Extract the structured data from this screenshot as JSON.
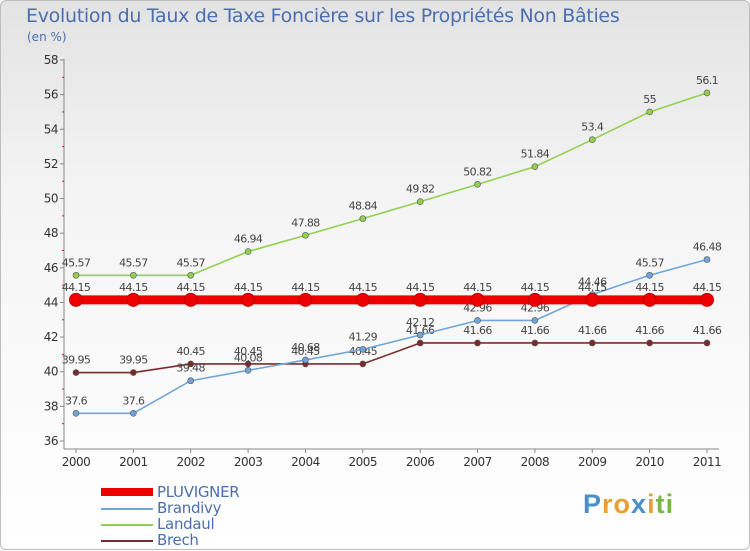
{
  "chart_data": {
    "type": "line",
    "title": "Evolution du Taux de Taxe Foncière sur les Propriétés Non Bâties",
    "subtitle": "(en %)",
    "xlabel": "",
    "ylabel": "",
    "ylim": [
      36,
      58
    ],
    "y_ticks": [
      "36",
      "38",
      "40",
      "42",
      "44",
      "46",
      "48",
      "50",
      "52",
      "54",
      "56",
      "58"
    ],
    "categories": [
      "2000",
      "2001",
      "2002",
      "2003",
      "2004",
      "2005",
      "2006",
      "2007",
      "2008",
      "2009",
      "2010",
      "2011"
    ],
    "grid": false,
    "legend_position": "bottom-left",
    "series": [
      {
        "name": "PLUVIGNER",
        "color": "#ee0000",
        "values": [
          44.15,
          44.15,
          44.15,
          44.15,
          44.15,
          44.15,
          44.15,
          44.15,
          44.15,
          44.15,
          44.15,
          44.15
        ],
        "labels": [
          "44.15",
          "44.15",
          "44.15",
          "44.15",
          "44.15",
          "44.15",
          "44.15",
          "44.15",
          "44.15",
          "44.15",
          "44.15",
          "44.15"
        ]
      },
      {
        "name": "Brandivy",
        "color": "#6fa5d8",
        "values": [
          37.6,
          37.6,
          39.48,
          40.08,
          40.68,
          41.29,
          42.12,
          42.96,
          42.96,
          44.46,
          45.57,
          46.48
        ],
        "labels": [
          "37.6",
          "37.6",
          "39.48",
          "40.08",
          "40.68",
          "41.29",
          "42.12",
          "42.96",
          "42.96",
          "44.46",
          "45.57",
          "46.48"
        ]
      },
      {
        "name": "Landaul",
        "color": "#92d050",
        "values": [
          45.57,
          45.57,
          45.57,
          46.94,
          47.88,
          48.84,
          49.82,
          50.82,
          51.84,
          53.4,
          55,
          56.1
        ],
        "labels": [
          "45.57",
          "45.57",
          "45.57",
          "46.94",
          "47.88",
          "48.84",
          "49.82",
          "50.82",
          "51.84",
          "53.4",
          "55",
          "56.1"
        ]
      },
      {
        "name": "Brech",
        "color": "#7a2a2a",
        "values": [
          39.95,
          39.95,
          40.45,
          40.45,
          40.45,
          40.45,
          41.66,
          41.66,
          41.66,
          41.66,
          41.66,
          41.66
        ],
        "labels": [
          "39.95",
          "39.95",
          "40.45",
          "40.45",
          "40.45",
          "40.45",
          "41.66",
          "41.66",
          "41.66",
          "41.66",
          "41.66",
          "41.66"
        ]
      }
    ]
  },
  "brand": {
    "text": "Proxiti",
    "letters": [
      "P",
      "r",
      "o",
      "x",
      "i",
      "t",
      "i"
    ],
    "colors": [
      "#4a90c8",
      "#e8a030",
      "#e8a030",
      "#4a90c8",
      "#e8a030",
      "#7ab648",
      "#7ab648"
    ]
  }
}
